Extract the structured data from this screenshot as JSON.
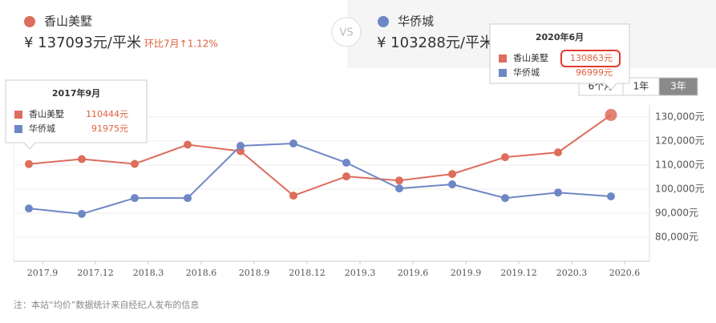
{
  "header": {
    "vs": "VS",
    "left_price": "¥ 137093元/平米",
    "left_change": "环比7月↑1.12%",
    "right_price": "¥ 103288元/平米"
  },
  "controls": [
    "6个月",
    "1年",
    "3年"
  ],
  "note": "注：本站“均价”数据统计来自经纪人发布的信息",
  "chart_data": {
    "type": "line",
    "categories": [
      "2017.9",
      "2017.12",
      "2018.3",
      "2018.6",
      "2018.9",
      "2018.12",
      "2019.3",
      "2019.6",
      "2019.9",
      "2019.12",
      "2020.3",
      "2020.6"
    ],
    "series": [
      {
        "name": "香山美墅",
        "color": "#dd6d5c",
        "values": [
          110444,
          112500,
          110500,
          118500,
          115800,
          97300,
          105300,
          103600,
          106300,
          113300,
          115300,
          130863
        ]
      },
      {
        "name": "华侨城",
        "color": "#6e87c5",
        "values": [
          91975,
          89700,
          96300,
          96300,
          118000,
          119000,
          111000,
          100300,
          102000,
          96300,
          98600,
          96999
        ]
      }
    ],
    "ylim": [
      70000,
      135000
    ],
    "yticks": [
      {
        "value": 80000,
        "label": "80,000元"
      },
      {
        "value": 90000,
        "label": "90,000元"
      },
      {
        "value": 100000,
        "label": "100,000元"
      },
      {
        "value": 110000,
        "label": "110,000元"
      },
      {
        "value": 120000,
        "label": "120,000元"
      },
      {
        "value": 130000,
        "label": "130,000元"
      }
    ],
    "grid": true,
    "tooltips": [
      {
        "title": "2017年9月",
        "values": [
          "110444元",
          "91975元"
        ]
      },
      {
        "title": "2020年6月",
        "values": [
          "130863元",
          "96999元"
        ]
      }
    ]
  }
}
